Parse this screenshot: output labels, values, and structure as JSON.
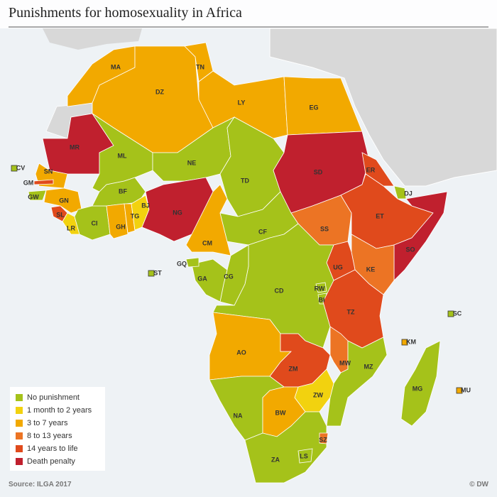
{
  "title": "Punishments for homosexuality in Africa",
  "source": "Source: ILGA 2017",
  "credit": "© DW",
  "legend": [
    {
      "label": "No punishment",
      "color": "#a5c21a"
    },
    {
      "label": "1 month to 2 years",
      "color": "#f2d20f"
    },
    {
      "label": "3 to 7 years",
      "color": "#f2a900"
    },
    {
      "label": "8 to 13 years",
      "color": "#ec7424"
    },
    {
      "label": "14 years to life",
      "color": "#e04a1c"
    },
    {
      "label": "Death penalty",
      "color": "#c0202e"
    }
  ],
  "countries": [
    {
      "code": "MA",
      "color": "#f2a900"
    },
    {
      "code": "DZ",
      "color": "#f2a900"
    },
    {
      "code": "TN",
      "color": "#f2a900"
    },
    {
      "code": "LY",
      "color": "#f2a900"
    },
    {
      "code": "EG",
      "color": "#f2a900"
    },
    {
      "code": "MR",
      "color": "#c0202e"
    },
    {
      "code": "ML",
      "color": "#a5c21a"
    },
    {
      "code": "NE",
      "color": "#a5c21a"
    },
    {
      "code": "TD",
      "color": "#a5c21a"
    },
    {
      "code": "SD",
      "color": "#c0202e"
    },
    {
      "code": "ER",
      "color": "#e04a1c"
    },
    {
      "code": "ET",
      "color": "#e04a1c"
    },
    {
      "code": "DJ",
      "color": "#a5c21a"
    },
    {
      "code": "SO",
      "color": "#c0202e"
    },
    {
      "code": "SN",
      "color": "#f2a900"
    },
    {
      "code": "GM",
      "color": "#e04a1c"
    },
    {
      "code": "GW",
      "color": "#a5c21a"
    },
    {
      "code": "GN",
      "color": "#f2a900"
    },
    {
      "code": "SL",
      "color": "#e04a1c"
    },
    {
      "code": "LR",
      "color": "#f2d20f"
    },
    {
      "code": "CI",
      "color": "#a5c21a"
    },
    {
      "code": "BF",
      "color": "#a5c21a"
    },
    {
      "code": "GH",
      "color": "#f2a900"
    },
    {
      "code": "TG",
      "color": "#f2a900"
    },
    {
      "code": "BJ",
      "color": "#f2d20f"
    },
    {
      "code": "NG",
      "color": "#c0202e"
    },
    {
      "code": "CM",
      "color": "#f2a900"
    },
    {
      "code": "CF",
      "color": "#a5c21a"
    },
    {
      "code": "SS",
      "color": "#ec7424"
    },
    {
      "code": "KE",
      "color": "#ec7424"
    },
    {
      "code": "UG",
      "color": "#e04a1c"
    },
    {
      "code": "CD",
      "color": "#a5c21a"
    },
    {
      "code": "CG",
      "color": "#a5c21a"
    },
    {
      "code": "GA",
      "color": "#a5c21a"
    },
    {
      "code": "GQ",
      "color": "#a5c21a"
    },
    {
      "code": "RW",
      "color": "#a5c21a"
    },
    {
      "code": "BI",
      "color": "#a5c21a"
    },
    {
      "code": "TZ",
      "color": "#e04a1c"
    },
    {
      "code": "AO",
      "color": "#f2a900"
    },
    {
      "code": "ZM",
      "color": "#e04a1c"
    },
    {
      "code": "MW",
      "color": "#ec7424"
    },
    {
      "code": "MZ",
      "color": "#a5c21a"
    },
    {
      "code": "ZW",
      "color": "#f2d20f"
    },
    {
      "code": "NA",
      "color": "#a5c21a"
    },
    {
      "code": "BW",
      "color": "#f2a900"
    },
    {
      "code": "ZA",
      "color": "#a5c21a"
    },
    {
      "code": "LS",
      "color": "#a5c21a"
    },
    {
      "code": "SZ",
      "color": "#ec7424"
    },
    {
      "code": "MG",
      "color": "#a5c21a"
    },
    {
      "code": "CV",
      "color": "#a5c21a"
    },
    {
      "code": "ST",
      "color": "#a5c21a"
    },
    {
      "code": "SC",
      "color": "#a5c21a"
    },
    {
      "code": "KM",
      "color": "#f2a900"
    },
    {
      "code": "MU",
      "color": "#f2a900"
    }
  ]
}
